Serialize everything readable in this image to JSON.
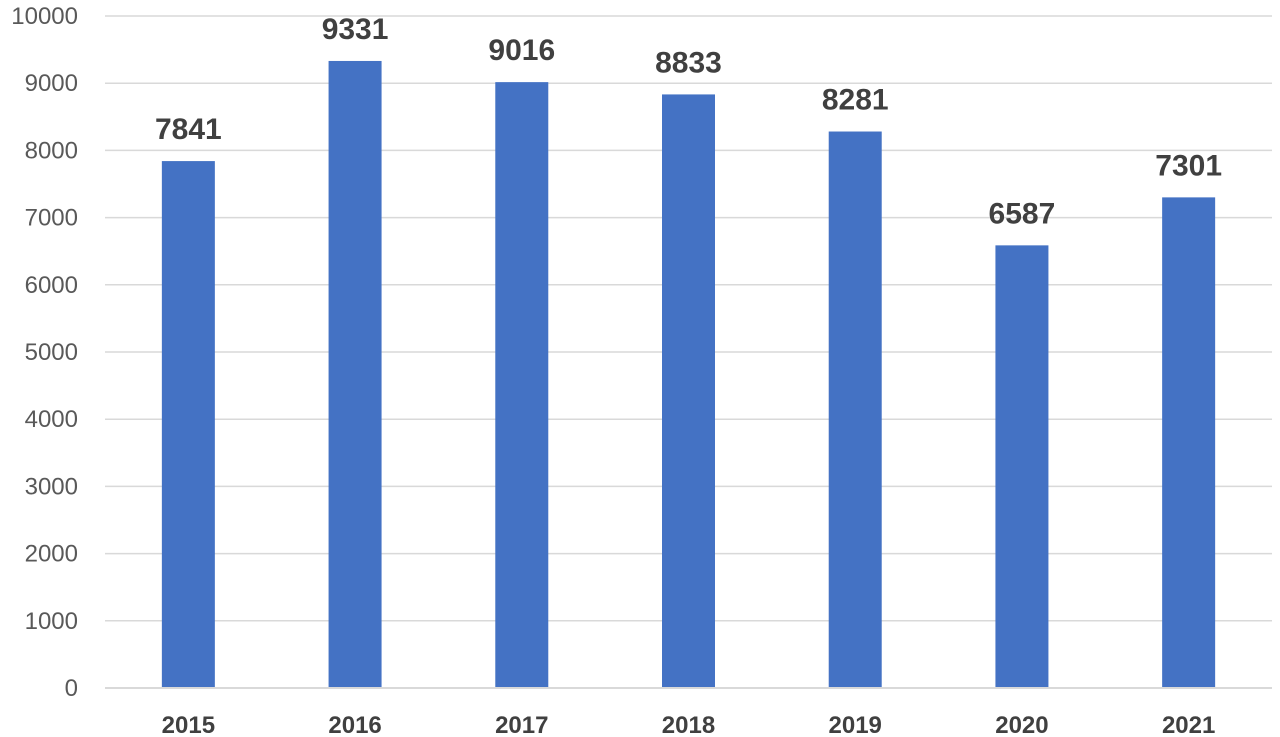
{
  "chart_data": {
    "type": "bar",
    "title": "",
    "xlabel": "",
    "ylabel": "",
    "categories": [
      "2015",
      "2016",
      "2017",
      "2018",
      "2019",
      "2020",
      "2021"
    ],
    "values": [
      7841,
      9331,
      9016,
      8833,
      8281,
      6587,
      7301
    ],
    "ylim": [
      0,
      10000
    ],
    "yticks": [
      0,
      1000,
      2000,
      3000,
      4000,
      5000,
      6000,
      7000,
      8000,
      9000,
      10000
    ],
    "grid": true,
    "legend": "none",
    "colors": {
      "bar": "#4472c4",
      "grid": "#d9d9d9",
      "axis": "#d9d9d9"
    }
  }
}
